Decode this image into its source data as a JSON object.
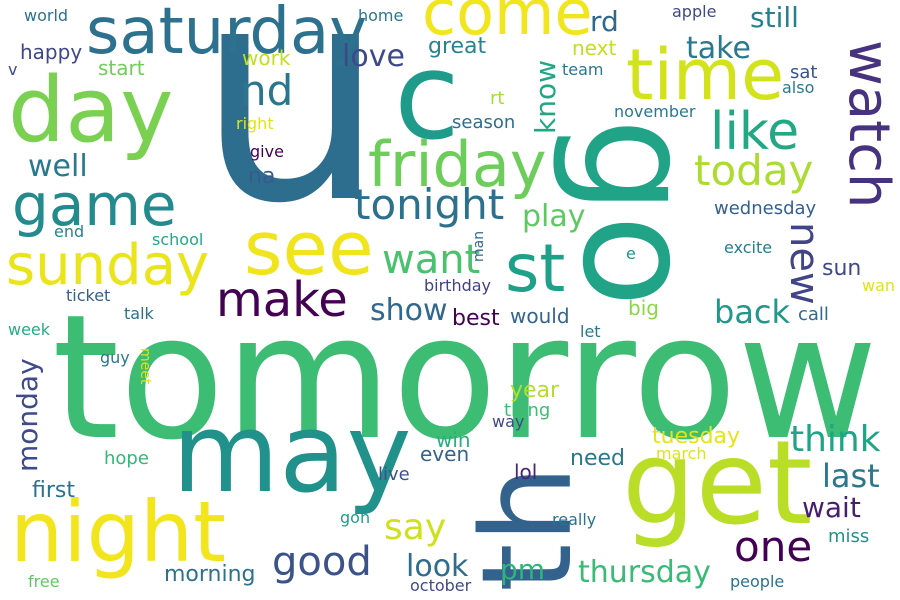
{
  "words": [
    {
      "id": "tomorrow",
      "text": "tomorrow",
      "color": "#3dbc74"
    },
    {
      "id": "u",
      "text": "u",
      "color": "#2d6e8e"
    },
    {
      "id": "go",
      "text": "go",
      "color": "#20a386"
    },
    {
      "id": "th",
      "text": "th",
      "color": "#33638d"
    },
    {
      "id": "may",
      "text": "may",
      "color": "#21918c"
    },
    {
      "id": "get",
      "text": "get",
      "color": "#bade28"
    },
    {
      "id": "c",
      "text": "c",
      "color": "#1e9b8a"
    },
    {
      "id": "day",
      "text": "day",
      "color": "#7ad151"
    },
    {
      "id": "night",
      "text": "night",
      "color": "#f2e51d"
    },
    {
      "id": "saturday",
      "text": "saturday",
      "color": "#2c728e"
    },
    {
      "id": "see",
      "text": "see",
      "color": "#f0e41c"
    },
    {
      "id": "come",
      "text": "come",
      "color": "#f1e51d"
    },
    {
      "id": "time",
      "text": "time",
      "color": "#d2e21b"
    },
    {
      "id": "friday",
      "text": "friday",
      "color": "#6ccd5a"
    },
    {
      "id": "game",
      "text": "game",
      "color": "#238a8d"
    },
    {
      "id": "sunday",
      "text": "sunday",
      "color": "#eae51a"
    },
    {
      "id": "st",
      "text": "st",
      "color": "#1fa088"
    },
    {
      "id": "watch",
      "text": "watch",
      "color": "#46327e"
    },
    {
      "id": "like",
      "text": "like",
      "color": "#22a884"
    },
    {
      "id": "make",
      "text": "make",
      "color": "#440154"
    },
    {
      "id": "nd",
      "text": "nd",
      "color": "#2a768e"
    },
    {
      "id": "today",
      "text": "today",
      "color": "#addc30"
    },
    {
      "id": "tonight",
      "text": "tonight",
      "color": "#2d708e"
    },
    {
      "id": "new",
      "text": "new",
      "color": "#414487"
    },
    {
      "id": "want",
      "text": "want",
      "color": "#4ac16d"
    },
    {
      "id": "one",
      "text": "one",
      "color": "#440154"
    },
    {
      "id": "good",
      "text": "good",
      "color": "#3b528b"
    },
    {
      "id": "think",
      "text": "think",
      "color": "#20a486"
    },
    {
      "id": "say",
      "text": "say",
      "color": "#cfe11c"
    },
    {
      "id": "thursday",
      "text": "thursday",
      "color": "#3aba76"
    },
    {
      "id": "love",
      "text": "love",
      "color": "#3e4989"
    },
    {
      "id": "well",
      "text": "well",
      "color": "#2a788e"
    },
    {
      "id": "show",
      "text": "show",
      "color": "#31688e"
    },
    {
      "id": "play",
      "text": "play",
      "color": "#5ec962"
    },
    {
      "id": "back",
      "text": "back",
      "color": "#1f988b"
    },
    {
      "id": "last",
      "text": "last",
      "color": "#2a788e"
    },
    {
      "id": "know",
      "text": "know",
      "color": "#22a785"
    },
    {
      "id": "take",
      "text": "take",
      "color": "#2a788e"
    },
    {
      "id": "still",
      "text": "still",
      "color": "#27808e"
    },
    {
      "id": "monday",
      "text": "monday",
      "color": "#3e4a89"
    },
    {
      "id": "look",
      "text": "look",
      "color": "#2f6c8e"
    },
    {
      "id": "wait",
      "text": "wait",
      "color": "#481f70"
    },
    {
      "id": "pm",
      "text": "pm",
      "color": "#2fb47c"
    },
    {
      "id": "first",
      "text": "first",
      "color": "#2c718e"
    },
    {
      "id": "rd",
      "text": "rd",
      "color": "#31688e"
    },
    {
      "id": "sun",
      "text": "sun",
      "color": "#3e4989"
    },
    {
      "id": "year",
      "text": "year",
      "color": "#b5de2b"
    },
    {
      "id": "tuesday",
      "text": "tuesday",
      "color": "#e5e419"
    },
    {
      "id": "need",
      "text": "need",
      "color": "#2a788e"
    },
    {
      "id": "na",
      "text": "na",
      "color": "#365c8d"
    },
    {
      "id": "great",
      "text": "great",
      "color": "#25848e"
    },
    {
      "id": "morning",
      "text": "morning",
      "color": "#2c728e"
    },
    {
      "id": "best",
      "text": "best",
      "color": "#440154"
    },
    {
      "id": "would",
      "text": "would",
      "color": "#32658e"
    },
    {
      "id": "win",
      "text": "win",
      "color": "#29af7f"
    },
    {
      "id": "even",
      "text": "even",
      "color": "#33638d"
    },
    {
      "id": "wednesday",
      "text": "wednesday",
      "color": "#35608d"
    },
    {
      "id": "season",
      "text": "season",
      "color": "#2e6e8e"
    },
    {
      "id": "next",
      "text": "next",
      "color": "#c2df23"
    },
    {
      "id": "start",
      "text": "start",
      "color": "#6ece58"
    },
    {
      "id": "happy",
      "text": "happy",
      "color": "#3f4788"
    },
    {
      "id": "work",
      "text": "work",
      "color": "#c0df25"
    },
    {
      "id": "big",
      "text": "big",
      "color": "#8bd646"
    },
    {
      "id": "thing",
      "text": "thing",
      "color": "#3dbc74"
    },
    {
      "id": "lol",
      "text": "lol",
      "color": "#482576"
    },
    {
      "id": "live",
      "text": "live",
      "color": "#3b528b"
    },
    {
      "id": "miss",
      "text": "miss",
      "color": "#21918c"
    },
    {
      "id": "hope",
      "text": "hope",
      "color": "#35b779"
    },
    {
      "id": "call",
      "text": "call",
      "color": "#31688e"
    },
    {
      "id": "birthday",
      "text": "birthday",
      "color": "#424186"
    },
    {
      "id": "excite",
      "text": "excite",
      "color": "#287c8e"
    },
    {
      "id": "ticket",
      "text": "ticket",
      "color": "#355f8d"
    },
    {
      "id": "talk",
      "text": "talk",
      "color": "#2c718e"
    },
    {
      "id": "gon",
      "text": "gon",
      "color": "#1f9e89"
    },
    {
      "id": "really",
      "text": "really",
      "color": "#2c728e"
    },
    {
      "id": "people",
      "text": "people",
      "color": "#2c728e"
    },
    {
      "id": "march",
      "text": "march",
      "color": "#dfe318"
    },
    {
      "id": "october",
      "text": "october",
      "color": "#3e4a89"
    },
    {
      "id": "november",
      "text": "november",
      "color": "#2a788e"
    },
    {
      "id": "world",
      "text": "world",
      "color": "#2c728e"
    },
    {
      "id": "home",
      "text": "home",
      "color": "#2a788e"
    },
    {
      "id": "apple",
      "text": "apple",
      "color": "#3e4989"
    },
    {
      "id": "team",
      "text": "team",
      "color": "#2a788e"
    },
    {
      "id": "sat",
      "text": "sat",
      "color": "#3a538b"
    },
    {
      "id": "also",
      "text": "also",
      "color": "#2a788e"
    },
    {
      "id": "rt",
      "text": "rt",
      "color": "#a5db36"
    },
    {
      "id": "v",
      "text": "v",
      "color": "#3e4989"
    },
    {
      "id": "right",
      "text": "right",
      "color": "#e2e418"
    },
    {
      "id": "give",
      "text": "give",
      "color": "#440154"
    },
    {
      "id": "school",
      "text": "school",
      "color": "#22a785"
    },
    {
      "id": "end",
      "text": "end",
      "color": "#26828e"
    },
    {
      "id": "week",
      "text": "week",
      "color": "#25ac82"
    },
    {
      "id": "guy",
      "text": "guy",
      "color": "#2a788e"
    },
    {
      "id": "meet",
      "text": "meet",
      "color": "#dde318"
    },
    {
      "id": "man",
      "text": "man",
      "color": "#31688e"
    },
    {
      "id": "let",
      "text": "let",
      "color": "#2a788e"
    },
    {
      "id": "e",
      "text": "e",
      "color": "#21918c"
    },
    {
      "id": "wan",
      "text": "wan",
      "color": "#dfe318"
    },
    {
      "id": "way",
      "text": "way",
      "color": "#3e4989"
    },
    {
      "id": "free",
      "text": "free",
      "color": "#5ec962"
    }
  ]
}
